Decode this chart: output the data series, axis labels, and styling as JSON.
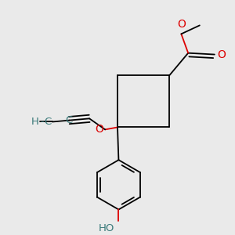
{
  "background_color": "#eaeaea",
  "bond_color": "#000000",
  "heteroatom_color": "#dd0000",
  "terminal_atom_color": "#3a7a7a",
  "line_width": 1.3,
  "figsize": [
    3.0,
    3.0
  ],
  "dpi": 100,
  "xlim": [
    0.0,
    1.0
  ],
  "ylim": [
    0.0,
    1.0
  ]
}
